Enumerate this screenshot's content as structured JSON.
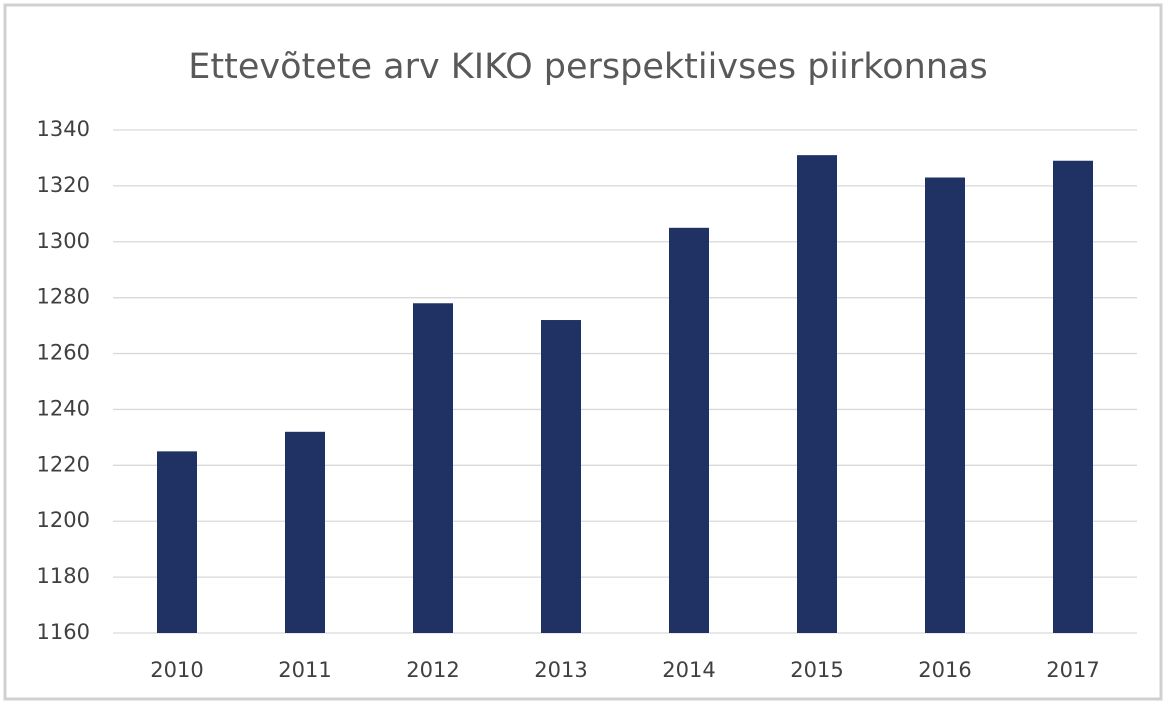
{
  "chart_data": {
    "type": "bar",
    "title": "Ettevõtete arv KIKO perspektiivses piirkonnas",
    "categories": [
      "2010",
      "2011",
      "2012",
      "2013",
      "2014",
      "2015",
      "2016",
      "2017"
    ],
    "values": [
      1225,
      1232,
      1278,
      1272,
      1305,
      1331,
      1323,
      1329
    ],
    "color": "#1f3263",
    "ylim": [
      1160,
      1340
    ],
    "yticks": [
      1160,
      1180,
      1200,
      1220,
      1240,
      1260,
      1280,
      1300,
      1320,
      1340
    ],
    "grid": true
  }
}
